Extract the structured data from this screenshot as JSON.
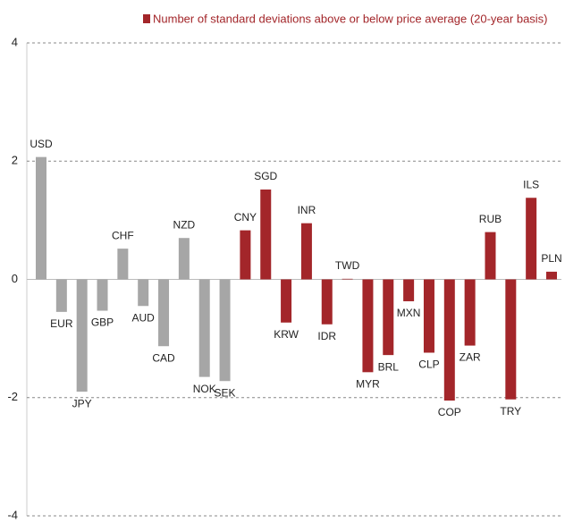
{
  "chart_data": {
    "type": "bar",
    "legend": "Number of standard deviations above or below price average (20-year basis)",
    "legend_color": "#a3262a",
    "categories": [
      "USD",
      "EUR",
      "JPY",
      "GBP",
      "CHF",
      "AUD",
      "CAD",
      "NZD",
      "NOK",
      "SEK",
      "CNY",
      "SGD",
      "KRW",
      "INR",
      "IDR",
      "TWD",
      "MYR",
      "BRL",
      "MXN",
      "CLP",
      "COP",
      "ZAR",
      "RUB",
      "TRY",
      "ILS",
      "PLN"
    ],
    "values": [
      2.07,
      -0.55,
      -1.9,
      -0.53,
      0.52,
      -0.45,
      -1.13,
      0.7,
      -1.65,
      -1.72,
      0.83,
      1.52,
      -0.73,
      0.95,
      -0.76,
      0.01,
      -1.57,
      -1.28,
      -0.37,
      -1.24,
      -2.05,
      -1.12,
      0.8,
      -2.03,
      1.38,
      0.13
    ],
    "colors": [
      "#a6a6a6",
      "#a6a6a6",
      "#a6a6a6",
      "#a6a6a6",
      "#a6a6a6",
      "#a6a6a6",
      "#a6a6a6",
      "#a6a6a6",
      "#a6a6a6",
      "#a6a6a6",
      "#a3262a",
      "#a3262a",
      "#a3262a",
      "#a3262a",
      "#a3262a",
      "#a3262a",
      "#a3262a",
      "#a3262a",
      "#a3262a",
      "#a3262a",
      "#a3262a",
      "#a3262a",
      "#a3262a",
      "#a3262a",
      "#a3262a",
      "#a3262a"
    ],
    "ylim": [
      -4,
      4
    ],
    "yticks": [
      -4,
      -2,
      0,
      2,
      4
    ],
    "grid": true
  }
}
